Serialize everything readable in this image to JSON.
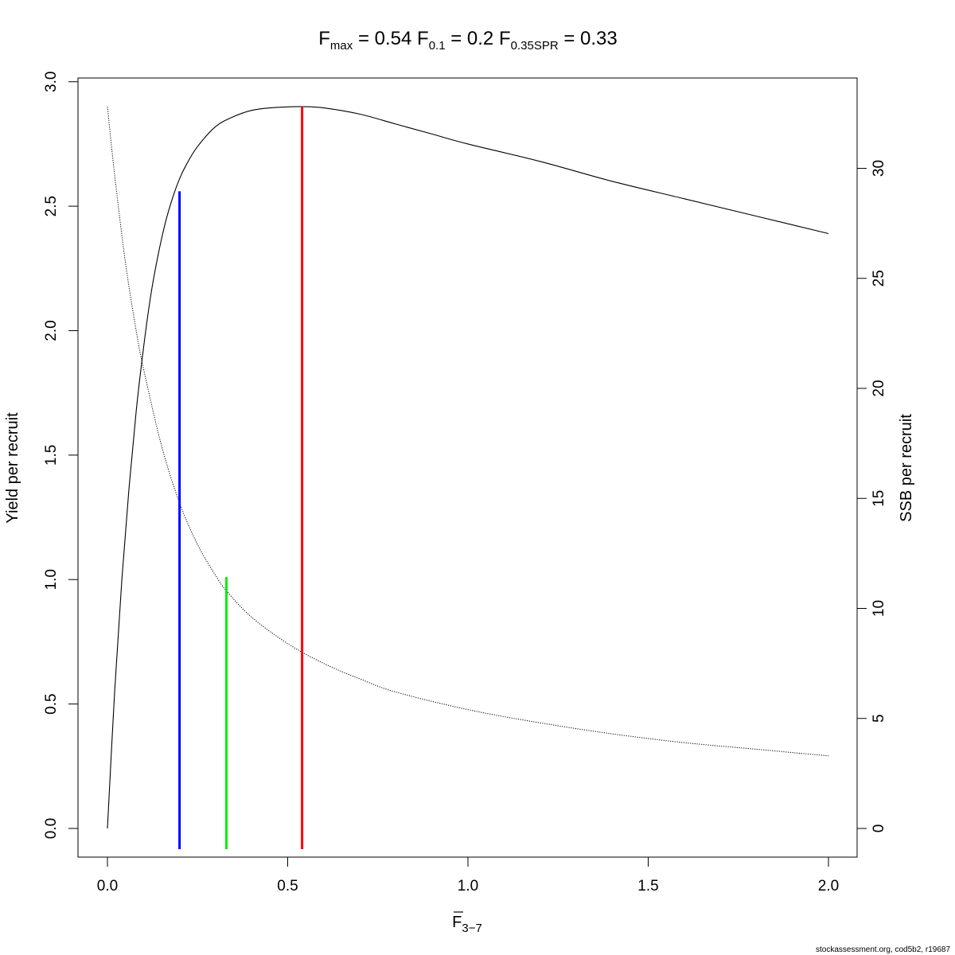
{
  "chart_data": {
    "type": "line",
    "title": {
      "fmax_label": "F",
      "fmax_sub": "max",
      "fmax_value": "0.54",
      "f01_label": "F",
      "f01_sub": "0.1",
      "f01_value": "0.2",
      "fspr_label": "F",
      "fspr_sub": "0.35SPR",
      "fspr_value": "0.33",
      "equals": "="
    },
    "xlabel": {
      "main": "F",
      "sub": "3−7"
    },
    "ylabel": "Yield per recruit",
    "y2label": "SSB per recruit",
    "xlim": [
      0.0,
      2.0
    ],
    "ylim": [
      0.0,
      2.9
    ],
    "y2lim": [
      0.0,
      32.8
    ],
    "xticks": [
      "0.0",
      "0.5",
      "1.0",
      "1.5",
      "2.0"
    ],
    "yticks": [
      "0.0",
      "0.5",
      "1.0",
      "1.5",
      "2.0",
      "2.5",
      "3.0"
    ],
    "y2ticks": [
      "0",
      "5",
      "10",
      "15",
      "20",
      "25",
      "30"
    ],
    "grid": false,
    "series": [
      {
        "axis": "left",
        "style": "solid",
        "color": "#000000",
        "x": [
          0.0,
          0.02,
          0.04,
          0.06,
          0.08,
          0.1,
          0.12,
          0.14,
          0.16,
          0.18,
          0.2,
          0.22,
          0.25,
          0.3,
          0.35,
          0.4,
          0.45,
          0.5,
          0.54,
          0.6,
          0.7,
          0.8,
          0.9,
          1.0,
          1.2,
          1.4,
          1.6,
          1.8,
          2.0
        ],
        "y": [
          0.0,
          0.55,
          1.0,
          1.37,
          1.68,
          1.93,
          2.14,
          2.3,
          2.43,
          2.53,
          2.61,
          2.67,
          2.74,
          2.82,
          2.86,
          2.885,
          2.895,
          2.899,
          2.9,
          2.895,
          2.87,
          2.83,
          2.79,
          2.75,
          2.68,
          2.6,
          2.53,
          2.46,
          2.39
        ]
      },
      {
        "axis": "right",
        "style": "dotted",
        "color": "#000000",
        "x": [
          0.0,
          0.02,
          0.05,
          0.08,
          0.1,
          0.15,
          0.2,
          0.25,
          0.3,
          0.33,
          0.4,
          0.5,
          0.6,
          0.7,
          0.8,
          1.0,
          1.2,
          1.4,
          1.6,
          1.8,
          2.0
        ],
        "y": [
          32.8,
          29.7,
          25.7,
          22.6,
          20.9,
          17.4,
          14.8,
          12.9,
          11.5,
          10.8,
          9.6,
          8.4,
          7.5,
          6.8,
          6.2,
          5.4,
          4.8,
          4.3,
          3.9,
          3.6,
          3.3
        ]
      }
    ],
    "reference_lines": [
      {
        "name": "F0.1",
        "x": 0.2,
        "y_top": 2.56,
        "color": "#0000ff"
      },
      {
        "name": "F0.35SPR",
        "x": 0.33,
        "y_top": 1.01,
        "color": "#00ee00"
      },
      {
        "name": "Fmax",
        "x": 0.54,
        "y_top": 2.9,
        "color": "#ff0000"
      }
    ],
    "credit": "stockassessment.org, cod5b2, r19687"
  }
}
